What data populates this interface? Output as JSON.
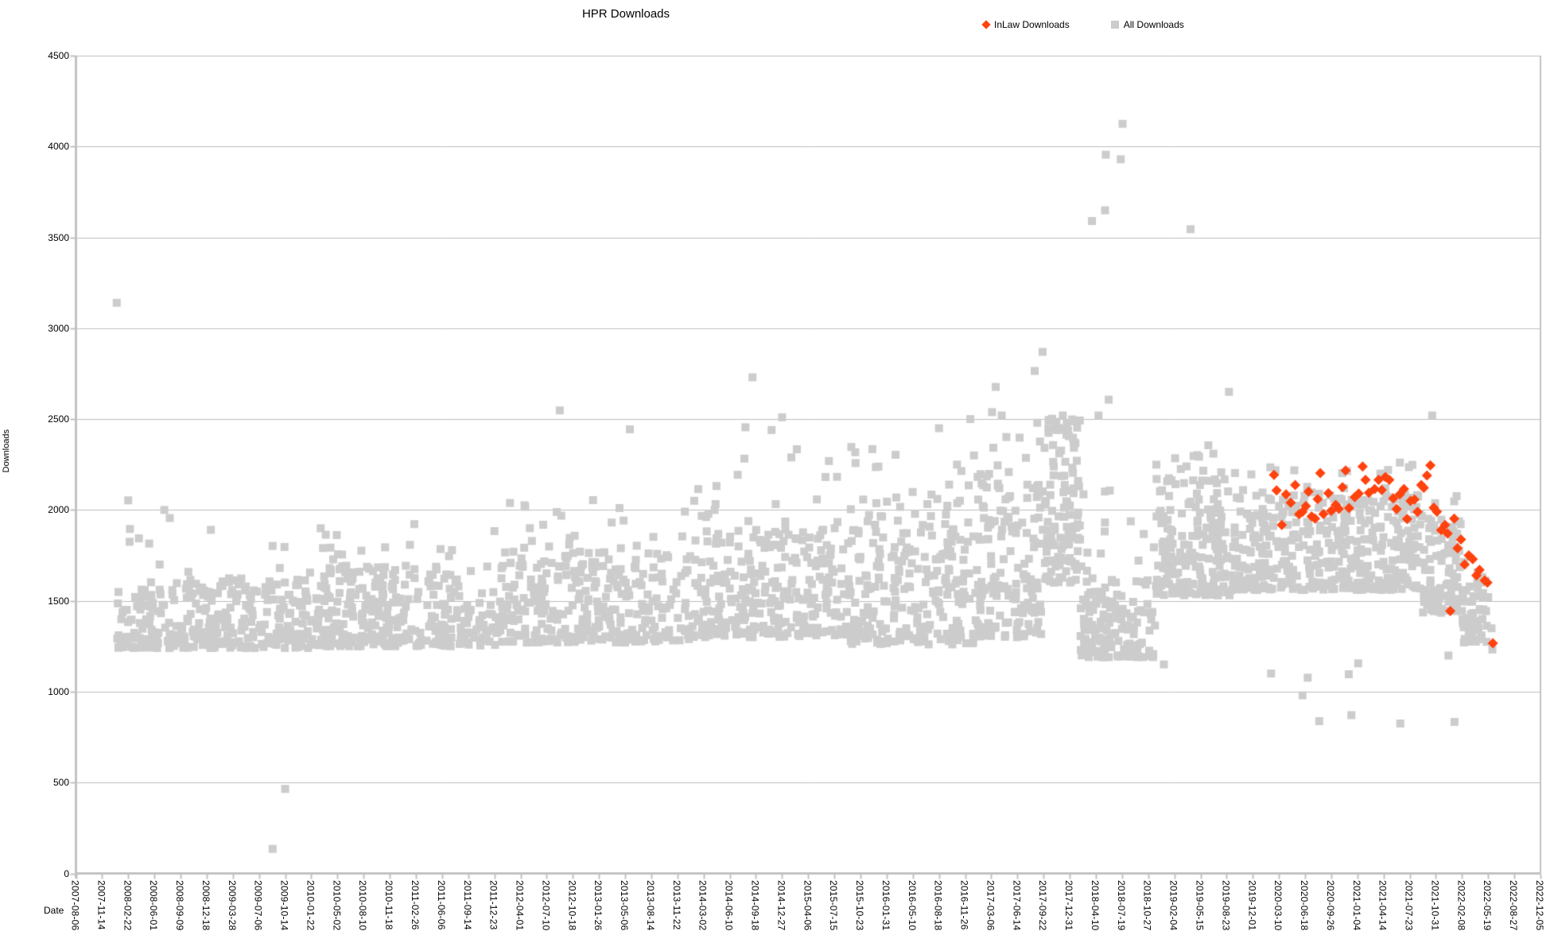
{
  "chart_data": {
    "type": "scatter",
    "title": "HPR Downloads",
    "xlabel": "Date",
    "ylabel": "Downloads",
    "grid": "horizontal",
    "legend_position": "top-right",
    "x_axis": {
      "start_date": "2007-08-06",
      "tick_interval_days": 100,
      "t_min": 0,
      "t_max": 5600,
      "tick_labels": [
        "2007-08-06",
        "2007-11-14",
        "2008-02-22",
        "2008-06-01",
        "2008-09-09",
        "2008-12-18",
        "2009-03-28",
        "2009-07-06",
        "2009-10-14",
        "2010-01-22",
        "2010-05-02",
        "2010-08-10",
        "2010-11-18",
        "2011-02-26",
        "2011-06-06",
        "2011-09-14",
        "2011-12-23",
        "2012-04-01",
        "2012-07-10",
        "2012-10-18",
        "2013-01-26",
        "2013-05-06",
        "2013-08-14",
        "2013-11-22",
        "2014-03-02",
        "2014-06-10",
        "2014-09-18",
        "2014-12-27",
        "2015-04-06",
        "2015-07-15",
        "2015-10-23",
        "2016-01-31",
        "2016-05-10",
        "2016-08-18",
        "2016-11-26",
        "2017-03-06",
        "2017-06-14",
        "2017-09-22",
        "2017-12-31",
        "2018-04-10",
        "2018-07-19",
        "2018-10-27",
        "2019-02-04",
        "2019-05-15",
        "2019-08-23",
        "2019-12-01",
        "2020-03-10",
        "2020-06-18",
        "2020-09-26",
        "2021-01-04",
        "2021-04-14",
        "2021-07-23",
        "2021-10-31",
        "2022-02-08",
        "2022-05-19",
        "2022-08-27",
        "2022-12-05"
      ]
    },
    "y_axis": {
      "min": 0,
      "max": 4500,
      "tick_interval": 500,
      "tick_labels": [
        "0",
        "500",
        "1000",
        "1500",
        "2000",
        "2500",
        "3000",
        "3500",
        "4000",
        "4500"
      ]
    },
    "series": [
      {
        "name": "InLaw Downloads",
        "marker": "diamond",
        "color": "#ff420e",
        "points_note": "t = days since 2007-08-06, v = downloads",
        "points": [
          [
            4581,
            2193
          ],
          [
            4591,
            2108
          ],
          [
            4611,
            1918
          ],
          [
            4627,
            2086
          ],
          [
            4645,
            2040
          ],
          [
            4662,
            2137
          ],
          [
            4677,
            1977
          ],
          [
            4690,
            1990
          ],
          [
            4703,
            2021
          ],
          [
            4713,
            2101
          ],
          [
            4725,
            1965
          ],
          [
            4738,
            1952
          ],
          [
            4748,
            2060
          ],
          [
            4758,
            2203
          ],
          [
            4770,
            1978
          ],
          [
            4789,
            2093
          ],
          [
            4800,
            1995
          ],
          [
            4817,
            2028
          ],
          [
            4829,
            2006
          ],
          [
            4843,
            2125
          ],
          [
            4855,
            2217
          ],
          [
            4868,
            2010
          ],
          [
            4890,
            2071
          ],
          [
            4905,
            2090
          ],
          [
            4920,
            2239
          ],
          [
            4931,
            2166
          ],
          [
            4944,
            2095
          ],
          [
            4966,
            2115
          ],
          [
            4981,
            2166
          ],
          [
            4993,
            2110
          ],
          [
            5007,
            2181
          ],
          [
            5022,
            2166
          ],
          [
            5037,
            2064
          ],
          [
            5050,
            2005
          ],
          [
            5062,
            2086
          ],
          [
            5078,
            2115
          ],
          [
            5090,
            1950
          ],
          [
            5103,
            2050
          ],
          [
            5118,
            2057
          ],
          [
            5130,
            1990
          ],
          [
            5144,
            2137
          ],
          [
            5154,
            2122
          ],
          [
            5166,
            2190
          ],
          [
            5179,
            2246
          ],
          [
            5192,
            2013
          ],
          [
            5204,
            1991
          ],
          [
            5220,
            1889
          ],
          [
            5235,
            1918
          ],
          [
            5245,
            1870
          ],
          [
            5255,
            1444
          ],
          [
            5270,
            1952
          ],
          [
            5283,
            1790
          ],
          [
            5296,
            1838
          ],
          [
            5310,
            1700
          ],
          [
            5326,
            1750
          ],
          [
            5341,
            1729
          ],
          [
            5355,
            1640
          ],
          [
            5367,
            1670
          ],
          [
            5387,
            1612
          ],
          [
            5397,
            1600
          ],
          [
            5418,
            1267
          ]
        ]
      },
      {
        "name": "All Downloads",
        "marker": "square",
        "color": "#cccccc",
        "points_note": "t = days since 2007-08-06; dense daily cloud encoded as clusters + explicit outliers",
        "outlier_points": [
          [
            156,
            3140
          ],
          [
            752,
            135
          ],
          [
            800,
            465
          ],
          [
            205,
            1825
          ],
          [
            280,
            1815
          ],
          [
            320,
            1700
          ],
          [
            338,
            2000
          ],
          [
            1850,
            2548
          ],
          [
            2118,
            2444
          ],
          [
            2560,
            2455
          ],
          [
            2587,
            2730
          ],
          [
            2660,
            2440
          ],
          [
            2700,
            2510
          ],
          [
            3300,
            2450
          ],
          [
            3420,
            2500
          ],
          [
            3517,
            2677
          ],
          [
            3540,
            2520
          ],
          [
            3666,
            2765
          ],
          [
            3696,
            2870
          ],
          [
            3885,
            3590
          ],
          [
            3910,
            2520
          ],
          [
            3935,
            3649
          ],
          [
            3938,
            3955
          ],
          [
            3949,
            2607
          ],
          [
            3995,
            3930
          ],
          [
            4002,
            4125
          ],
          [
            4160,
            1150
          ],
          [
            4262,
            3545
          ],
          [
            4330,
            2356
          ],
          [
            4409,
            2650
          ],
          [
            4570,
            1100
          ],
          [
            4690,
            980
          ],
          [
            4710,
            1077
          ],
          [
            4754,
            838
          ],
          [
            4867,
            1096
          ],
          [
            4877,
            871
          ],
          [
            4903,
            1156
          ],
          [
            5064,
            825
          ],
          [
            5186,
            2520
          ],
          [
            5248,
            1199
          ],
          [
            5271,
            834
          ],
          [
            5390,
            1610
          ],
          [
            5400,
            1520
          ],
          [
            5413,
            1349
          ],
          [
            5416,
            1232
          ]
        ],
        "dense_band_clusters": [
          {
            "t0": 150,
            "t1": 900,
            "count": 340,
            "low": 1240,
            "high": 1630,
            "tail_max": 2060,
            "tail_frac": 0.05
          },
          {
            "t0": 900,
            "t1": 1620,
            "count": 340,
            "low": 1250,
            "high": 1690,
            "tail_max": 1960,
            "tail_frac": 0.05
          },
          {
            "t0": 1620,
            "t1": 2350,
            "count": 340,
            "low": 1270,
            "high": 1790,
            "tail_max": 2180,
            "tail_frac": 0.06
          },
          {
            "t0": 2350,
            "t1": 2950,
            "count": 300,
            "low": 1300,
            "high": 1890,
            "tail_max": 2350,
            "tail_frac": 0.07
          },
          {
            "t0": 2950,
            "t1": 3450,
            "count": 270,
            "low": 1260,
            "high": 2010,
            "tail_max": 2400,
            "tail_frac": 0.08
          },
          {
            "t0": 3450,
            "t1": 3700,
            "count": 160,
            "low": 1300,
            "high": 2130,
            "tail_max": 2560,
            "tail_frac": 0.09
          },
          {
            "t0": 3700,
            "t1": 3840,
            "count": 130,
            "low": 1600,
            "high": 2440,
            "tail_max": 2530,
            "tail_frac": 0.1
          },
          {
            "t0": 3840,
            "t1": 4130,
            "count": 170,
            "low": 1190,
            "high": 1630,
            "tail_max": 2120,
            "tail_frac": 0.07
          },
          {
            "t0": 4130,
            "t1": 4420,
            "count": 200,
            "low": 1530,
            "high": 2180,
            "tail_max": 2400,
            "tail_frac": 0.07
          },
          {
            "t0": 4420,
            "t1": 5150,
            "count": 420,
            "low": 1560,
            "high": 2080,
            "tail_max": 2330,
            "tail_frac": 0.06
          },
          {
            "t0": 5150,
            "t1": 5300,
            "count": 90,
            "low": 1430,
            "high": 1940,
            "tail_max": 2080,
            "tail_frac": 0.05
          },
          {
            "t0": 5300,
            "t1": 5395,
            "count": 55,
            "low": 1265,
            "high": 1650,
            "tail_max": 1840,
            "tail_frac": 0.05
          }
        ]
      }
    ],
    "colors": {
      "inlaw": "#ff420e",
      "all": "#cccccc",
      "gridline": "#bdbdbd",
      "axis": "#c2c2c2",
      "text": "#000000"
    }
  }
}
